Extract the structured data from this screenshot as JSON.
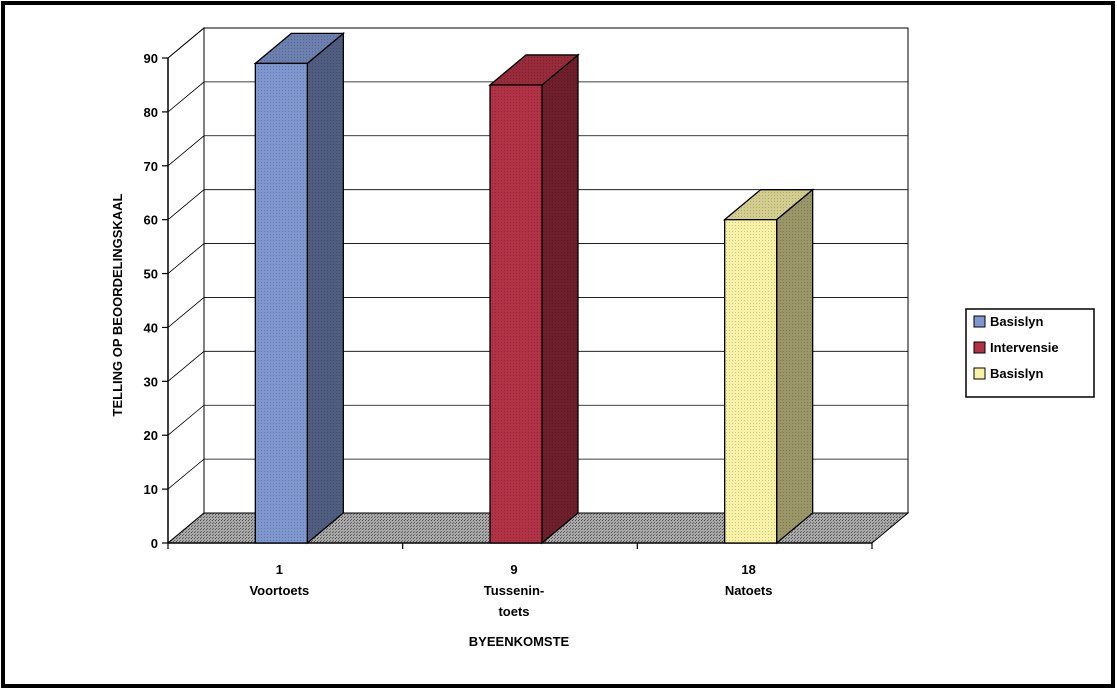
{
  "chart_data": {
    "type": "bar",
    "three_d": true,
    "title": "",
    "xlabel": "BYEENKOMSTE",
    "ylabel": "TELLING OP BEOORDELINGSKAAL",
    "ylim": [
      0,
      90
    ],
    "y_ticks": [
      "0",
      "10",
      "20",
      "30",
      "40",
      "50",
      "60",
      "70",
      "80",
      "90"
    ],
    "grid": true,
    "legend_position": "right",
    "categories": [
      {
        "number": "1",
        "lines": [
          "Voortoets"
        ]
      },
      {
        "number": "9",
        "lines": [
          "Tussenin-",
          "toets"
        ]
      },
      {
        "number": "18",
        "lines": [
          "Natoets"
        ]
      }
    ],
    "series": [
      {
        "name": "Basislyn",
        "color": "#7f97cf",
        "values": [
          89,
          null,
          null
        ]
      },
      {
        "name": "Intervensie",
        "color": "#b23245",
        "values": [
          null,
          85,
          null
        ]
      },
      {
        "name": "Basislyn",
        "color": "#f8f2a6",
        "values": [
          null,
          null,
          60
        ]
      }
    ]
  }
}
